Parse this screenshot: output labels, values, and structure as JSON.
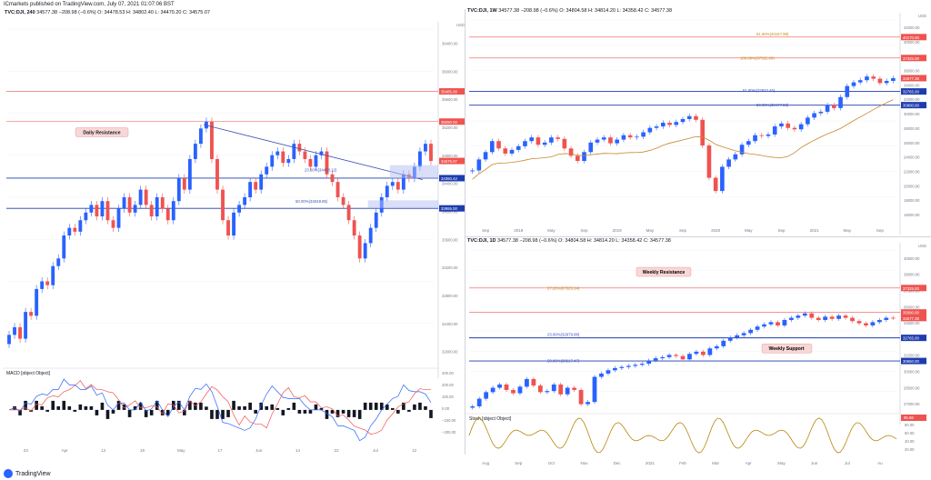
{
  "header": {
    "publish_line": "ICmarkets published on TradingView.com, July 07, 2021 01:07:06 BST"
  },
  "footer": {
    "brand": "TradingView"
  },
  "colors": {
    "up": "#2962ff",
    "down": "#ef5350",
    "resistance": "#ef5350",
    "support": "#1e3caf",
    "trendline": "#3f51b5",
    "ma": "#c9872b",
    "fib": "#c58a18",
    "macd": "#2962ff",
    "signal": "#ef5350",
    "stoch": "#b8860b"
  },
  "chart_data": [
    {
      "id": "left-240",
      "type": "candlestick",
      "title": "TVC:DJI, 240",
      "ohlc_text": "34577.38 −208.98 (−0.6%) O: 34478.53 H: 34802.40 L: 34470.20 C: 34575.07",
      "y_axis": {
        "unit": "USD",
        "ylim": [
          31900,
          36300
        ],
        "ticks": [
          "36400.00",
          "36000.00",
          "35600.00",
          "35200.00",
          "34800.00",
          "34400.00",
          "34000.00",
          "33600.00",
          "33200.00",
          "32800.00",
          "32400.00",
          "32000.00"
        ]
      },
      "x_ticks": [
        "23",
        "Apr",
        "12",
        "19",
        "May",
        "17",
        "Jun",
        "14",
        "22",
        "Jul",
        "12"
      ],
      "levels": [
        {
          "label": "35485.00",
          "value": 35485,
          "kind": "resistance"
        },
        {
          "label": "35090.00",
          "value": 35090,
          "kind": "resistance"
        },
        {
          "label": "34575.07",
          "value": 34575,
          "kind": "price"
        },
        {
          "label": "34350.42",
          "value": 34350,
          "kind": "support"
        },
        {
          "label": "33955.00",
          "value": 33955,
          "kind": "support"
        }
      ],
      "annotations": [
        {
          "text": "Daily Resistance"
        },
        {
          "text": "23.60%(34458.12)"
        },
        {
          "text": "50.00%(34048.85)"
        }
      ],
      "series_close": [
        32300,
        32400,
        32250,
        32600,
        32550,
        32900,
        33000,
        32950,
        33200,
        33300,
        33600,
        33700,
        33650,
        33800,
        33900,
        34000,
        33850,
        34050,
        33800,
        33700,
        33950,
        34100,
        33900,
        34000,
        34200,
        34000,
        33850,
        34100,
        33950,
        33800,
        34050,
        34350,
        34200,
        34600,
        34800,
        35000,
        35090,
        34600,
        34200,
        33800,
        33600,
        33900,
        34000,
        34100,
        34300,
        34200,
        34400,
        34500,
        34650,
        34700,
        34550,
        34600,
        34800,
        34700,
        34600,
        34500,
        34650,
        34700,
        34400,
        34300,
        34100,
        34000,
        33800,
        33600,
        33300,
        33500,
        33700,
        33900,
        34100,
        34250,
        34300,
        34200,
        34400,
        34350,
        34500,
        34700,
        34800,
        34575
      ]
    },
    {
      "id": "right-1w",
      "type": "candlestick",
      "title": "TVC:DJI, 1W",
      "ohlc_text": "34577.38 −208.98 (−0.6%) O: 34804.58 H: 34814.20 L: 34358.42 C: 34577.38",
      "y_axis": {
        "unit": "USD",
        "ylim": [
          15000,
          42500
        ],
        "ticks": [
          "42000.00",
          "40000.00",
          "38000.00",
          "36000.00",
          "34000.00",
          "32000.00",
          "30000.00",
          "28000.00",
          "26000.00",
          "24000.00",
          "22000.00",
          "20000.00",
          "18000.00",
          "16000.00"
        ]
      },
      "x_ticks": [
        "Sep",
        "2018",
        "May",
        "Sep",
        "2019",
        "May",
        "Sep",
        "2020",
        "May",
        "Sep",
        "2021",
        "May",
        "Sep"
      ],
      "levels": [
        {
          "label": "40170.00",
          "value": 40170,
          "kind": "resistance"
        },
        {
          "label": "37325.00",
          "value": 37325,
          "kind": "resistance"
        },
        {
          "label": "34577.38",
          "value": 34577,
          "kind": "price"
        },
        {
          "label": "32765.00",
          "value": 32765,
          "kind": "support"
        },
        {
          "label": "30900.00",
          "value": 30900,
          "kind": "support"
        }
      ],
      "annotations": [
        {
          "text": "61.80%(40167.98)"
        },
        {
          "text": "100.00%(37325.00)"
        },
        {
          "text": "61.80%(32932.45)"
        },
        {
          "text": "50.00%(30477.58)"
        }
      ],
      "series_close": [
        22000,
        23500,
        24500,
        26000,
        25000,
        24300,
        24800,
        25300,
        26000,
        26500,
        25500,
        25800,
        26500,
        26300,
        25000,
        24000,
        23300,
        24500,
        25800,
        26200,
        26500,
        25700,
        26200,
        26800,
        26500,
        26600,
        27200,
        27800,
        28000,
        28500,
        28200,
        28600,
        29000,
        29400,
        28900,
        25400,
        21000,
        19200,
        22500,
        23500,
        24200,
        25500,
        26000,
        26800,
        26700,
        26900,
        28000,
        28400,
        27800,
        27600,
        28300,
        29200,
        29800,
        30000,
        30900,
        30500,
        32000,
        33500,
        34000,
        34300,
        34800,
        34500,
        33900,
        34200,
        34577
      ]
    },
    {
      "id": "right-1d",
      "type": "candlestick",
      "title": "TVC:DJI, 1D",
      "ohlc_text": "34577.38 −208.98 (−0.6%) O: 34804.58 H: 34814.20 L: 34358.42 C: 34577.38",
      "y_axis": {
        "unit": "USD",
        "ylim": [
          26000,
          40800
        ],
        "ticks": [
          "40500.00",
          "39000.00",
          "37500.00",
          "36000.00",
          "34500.00",
          "33000.00",
          "31500.00",
          "30000.00",
          "28500.00",
          "27000.00"
        ]
      },
      "x_ticks": [
        "Aug",
        "Sep",
        "Oct",
        "Nov",
        "Dec",
        "2021",
        "Feb",
        "Mar",
        "Apr",
        "May",
        "Jun",
        "Jul",
        "Au"
      ],
      "levels": [
        {
          "label": "37325.00",
          "value": 37325,
          "kind": "resistance"
        },
        {
          "label": "35090.00",
          "value": 35090,
          "kind": "resistance"
        },
        {
          "label": "34577.38",
          "value": 34577,
          "kind": "price"
        },
        {
          "label": "32765.00",
          "value": 32765,
          "kind": "support"
        },
        {
          "label": "30650.00",
          "value": 30650,
          "kind": "support"
        }
      ],
      "annotations": [
        {
          "text": "Weekly Resistance"
        },
        {
          "text": "Weekly Support"
        },
        {
          "text": "27.20%(37325.34)"
        },
        {
          "text": "23.60%(32979.88)"
        },
        {
          "text": "50.00%(30617.47)"
        }
      ],
      "series_close": [
        26500,
        27200,
        27800,
        28200,
        28500,
        28000,
        27700,
        28300,
        29000,
        28400,
        27800,
        27900,
        28500,
        27600,
        28200,
        28000,
        26700,
        26900,
        29200,
        29500,
        29800,
        30000,
        30100,
        30200,
        30300,
        30400,
        30700,
        30900,
        31000,
        31200,
        31100,
        30800,
        31300,
        31500,
        31200,
        31800,
        32000,
        32500,
        32800,
        33000,
        33200,
        33500,
        33800,
        34000,
        34200,
        33900,
        34400,
        34600,
        34800,
        35000,
        34600,
        34400,
        34700,
        34500,
        34800,
        34600,
        34300,
        34100,
        33900,
        34200,
        34400,
        34600,
        34577
      ]
    }
  ],
  "indicators": {
    "macd": {
      "label": "MACD [object Object]",
      "y_ticks": [
        "400.00",
        "200.00",
        "100.00",
        "0.00",
        "−100.00",
        "−200.00"
      ]
    },
    "stoch": {
      "label": "Stoch [object Object]",
      "value_label": "95.68",
      "y_ticks": [
        "80.00",
        "60.00",
        "40.00",
        "20.00"
      ]
    }
  }
}
